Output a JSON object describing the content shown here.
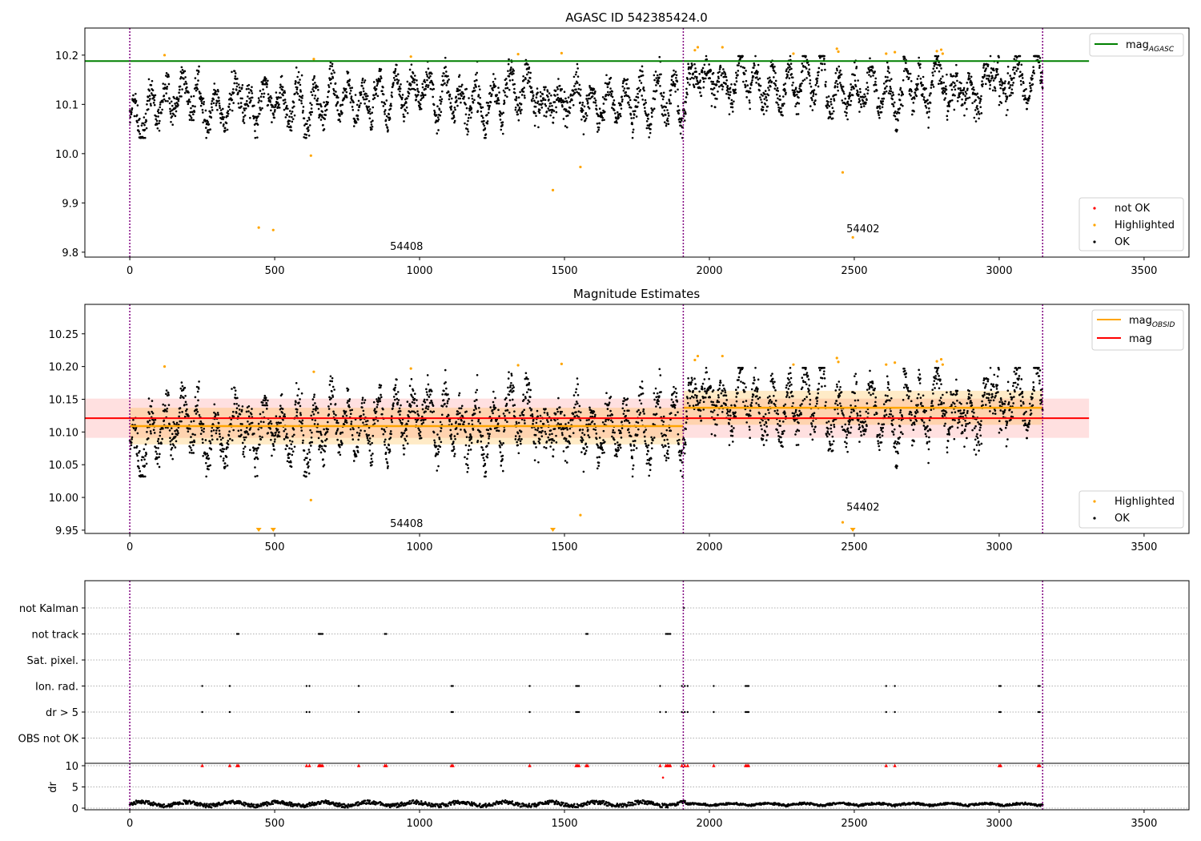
{
  "figure": {
    "panel1_title": "AGASC ID 542385424.0",
    "panel2_title": "Magnitude Estimates"
  },
  "colors": {
    "ok": "#000000",
    "highlighted": "#ffa500",
    "not_ok": "#ff0000",
    "mag_agasc": "#008000",
    "mag_obsid": "#ffa500",
    "mag": "#ff0000",
    "obs_boundary": "#800080",
    "dr_flag": "#ff0000"
  },
  "chart_data": [
    {
      "type": "scatter",
      "title": "AGASC ID 542385424.0",
      "xlim": [
        -155,
        3655
      ],
      "ylim": [
        9.79,
        10.255
      ],
      "xticks": [
        0,
        500,
        1000,
        1500,
        2000,
        2500,
        3000,
        3500
      ],
      "yticks": [
        9.8,
        9.9,
        10.0,
        10.1,
        10.2
      ],
      "ytick_labels": [
        "9.8",
        "9.9",
        "10.0",
        "10.1",
        "10.2"
      ],
      "obs_boundaries": [
        0,
        1910,
        3150
      ],
      "obs_labels": [
        {
          "x": 955,
          "y": 9.805,
          "text": "54408"
        },
        {
          "x": 2530,
          "y": 9.84,
          "text": "54402"
        }
      ],
      "mag_agasc": {
        "value": 10.188,
        "x_range": [
          -155,
          3310
        ]
      },
      "segments": [
        {
          "x_start": 0,
          "x_end": 1910,
          "mean": 10.108,
          "sd": 0.03
        },
        {
          "x_start": 1910,
          "x_end": 3150,
          "mean": 10.135,
          "sd": 0.028
        }
      ],
      "highlighted_points": [
        {
          "x": 120,
          "y": 10.2
        },
        {
          "x": 635,
          "y": 10.192
        },
        {
          "x": 970,
          "y": 10.197
        },
        {
          "x": 1340,
          "y": 10.202
        },
        {
          "x": 1490,
          "y": 10.204
        },
        {
          "x": 1950,
          "y": 10.21
        },
        {
          "x": 1960,
          "y": 10.216
        },
        {
          "x": 2045,
          "y": 10.216
        },
        {
          "x": 2290,
          "y": 10.203
        },
        {
          "x": 2440,
          "y": 10.213
        },
        {
          "x": 2445,
          "y": 10.207
        },
        {
          "x": 2610,
          "y": 10.203
        },
        {
          "x": 2640,
          "y": 10.206
        },
        {
          "x": 2785,
          "y": 10.208
        },
        {
          "x": 2800,
          "y": 10.211
        },
        {
          "x": 2805,
          "y": 10.203
        },
        {
          "x": 445,
          "y": 9.85
        },
        {
          "x": 495,
          "y": 9.845
        },
        {
          "x": 625,
          "y": 9.996
        },
        {
          "x": 1460,
          "y": 9.926
        },
        {
          "x": 1555,
          "y": 9.973
        },
        {
          "x": 2460,
          "y": 9.962
        },
        {
          "x": 2495,
          "y": 9.83
        }
      ],
      "legend": {
        "location": "lower right",
        "entries": [
          "not OK",
          "Highlighted",
          "OK"
        ]
      },
      "legend_upper": {
        "location": "upper right",
        "entries": [
          "mag",
          "AGASC"
        ]
      }
    },
    {
      "type": "scatter",
      "title": "Magnitude Estimates",
      "xlim": [
        -155,
        3655
      ],
      "ylim": [
        9.945,
        10.295
      ],
      "xticks": [
        0,
        500,
        1000,
        1500,
        2000,
        2500,
        3000,
        3500
      ],
      "yticks": [
        9.95,
        10.0,
        10.05,
        10.1,
        10.15,
        10.2,
        10.25
      ],
      "ytick_labels": [
        "9.95",
        "10.00",
        "10.05",
        "10.10",
        "10.15",
        "10.20",
        "10.25"
      ],
      "obs_boundaries": [
        0,
        1910,
        3150
      ],
      "obs_labels": [
        {
          "x": 955,
          "y": 9.955,
          "text": "54408"
        },
        {
          "x": 2530,
          "y": 9.98,
          "text": "54402"
        }
      ],
      "mag": {
        "value": 10.121,
        "band": [
          10.091,
          10.151
        ],
        "x_range": [
          -155,
          3310
        ]
      },
      "mag_obsid": [
        {
          "x_start": 0,
          "x_end": 1910,
          "value": 10.109,
          "band": [
            10.081,
            10.137
          ]
        },
        {
          "x_start": 1910,
          "x_end": 3150,
          "value": 10.137,
          "band": [
            10.111,
            10.163
          ]
        }
      ],
      "highlighted_points": [
        {
          "x": 120,
          "y": 10.2
        },
        {
          "x": 635,
          "y": 10.192
        },
        {
          "x": 970,
          "y": 10.197
        },
        {
          "x": 1340,
          "y": 10.202
        },
        {
          "x": 1490,
          "y": 10.204
        },
        {
          "x": 1950,
          "y": 10.21
        },
        {
          "x": 1960,
          "y": 10.216
        },
        {
          "x": 2045,
          "y": 10.216
        },
        {
          "x": 2290,
          "y": 10.203
        },
        {
          "x": 2440,
          "y": 10.213
        },
        {
          "x": 2445,
          "y": 10.207
        },
        {
          "x": 2610,
          "y": 10.203
        },
        {
          "x": 2640,
          "y": 10.206
        },
        {
          "x": 2785,
          "y": 10.208
        },
        {
          "x": 2800,
          "y": 10.211
        },
        {
          "x": 2805,
          "y": 10.203
        },
        {
          "x": 625,
          "y": 9.996
        },
        {
          "x": 1555,
          "y": 9.973
        },
        {
          "x": 2460,
          "y": 9.962
        }
      ],
      "off_scale_points": [
        {
          "x": 445
        },
        {
          "x": 495
        },
        {
          "x": 1460
        },
        {
          "x": 2495
        }
      ],
      "legend": {
        "location": "lower right",
        "entries": [
          "Highlighted",
          "OK"
        ]
      },
      "legend_upper": {
        "location": "upper right",
        "entries": [
          "mag",
          "OBSID",
          "mag"
        ]
      }
    },
    {
      "type": "scatter",
      "title": "",
      "xlim": [
        -155,
        3655
      ],
      "xticks": [
        0,
        500,
        1000,
        1500,
        2000,
        2500,
        3000,
        3500
      ],
      "obs_boundaries": [
        0,
        1910,
        3150
      ],
      "flag_rows": [
        "not Kalman",
        "not track",
        "Sat. pixel.",
        "Ion. rad.",
        "dr > 5",
        "OBS not OK"
      ],
      "flags": {
        "not Kalman": [
          1912
        ],
        "not track": [
          370,
          375,
          652,
          656,
          660,
          665,
          880,
          885,
          1575,
          1580,
          1850,
          1855,
          1860,
          1865
        ],
        "Sat. pixel.": [],
        "Ion. rad.": [
          250,
          345,
          610,
          620,
          790,
          1110,
          1115,
          1380,
          1540,
          1545,
          1550,
          1830,
          1905,
          1915,
          1925,
          2015,
          2125,
          2130,
          2135,
          2610,
          2640,
          3000,
          3005,
          3135,
          3140
        ],
        "dr > 5": [
          250,
          345,
          610,
          620,
          790,
          1110,
          1115,
          1380,
          1540,
          1545,
          1550,
          1830,
          1850,
          1905,
          1915,
          1925,
          2015,
          2125,
          2130,
          2135,
          2610,
          2640,
          3000,
          3005,
          3135,
          3140
        ],
        "OBS not OK": []
      },
      "dr": {
        "ylabel": "dr",
        "ylim": [
          -0.5,
          10.5
        ],
        "yticks": [
          0,
          5,
          10
        ],
        "ytick_labels": [
          "0",
          "5",
          "10"
        ],
        "capped_at_10": [
          250,
          345,
          370,
          375,
          610,
          620,
          652,
          656,
          660,
          665,
          790,
          880,
          885,
          1110,
          1115,
          1380,
          1540,
          1545,
          1550,
          1575,
          1580,
          1830,
          1850,
          1855,
          1860,
          1865,
          1905,
          1915,
          1925,
          2015,
          2125,
          2130,
          2135,
          2610,
          2640,
          3000,
          3005,
          3135,
          3140
        ],
        "outliers": [
          {
            "x": 1840,
            "y": 7.2
          }
        ],
        "typical_level": 1.0
      }
    }
  ]
}
